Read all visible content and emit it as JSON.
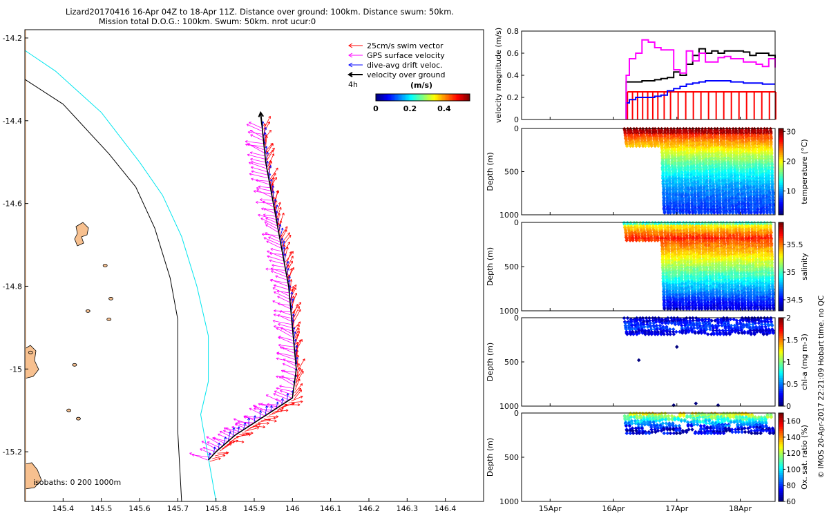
{
  "header": {
    "line1": "Lizard20170416 16-Apr 04Z to 18-Apr 11Z. Distance over ground: 100km. Distance swum: 50km.",
    "line2": "Mission total D.O.G.: 100km. Swum: 50km. nrot ucur:0"
  },
  "colors": {
    "swim": "#ff0000",
    "gps": "#ff00ff",
    "drift": "#0000ff",
    "vog": "#000000",
    "isobath_0": "#000000",
    "isobath_200": "#00e5ee",
    "isobath_1000": "#000000",
    "land": "#f7c08f"
  },
  "chart_data": [
    {
      "id": "map",
      "type": "scatter",
      "title": "Glider track map",
      "xlim": [
        145.3,
        146.5
      ],
      "ylim": [
        -15.32,
        -14.18
      ],
      "xticks": [
        "145.4",
        "145.5",
        "145.6",
        "145.7",
        "145.8",
        "145.9",
        "146",
        "146.1",
        "146.2",
        "146.3",
        "146.4"
      ],
      "xtick_values": [
        145.4,
        145.5,
        145.6,
        145.7,
        145.8,
        145.9,
        146.0,
        146.1,
        146.2,
        146.3,
        146.4
      ],
      "yticks": [
        "-14.2",
        "-14.4",
        "-14.6",
        "-14.8",
        "-15",
        "-15.2"
      ],
      "ytick_values": [
        -14.2,
        -14.4,
        -14.6,
        -14.8,
        -15.0,
        -15.2
      ],
      "legend": [
        {
          "label": "25cm/s swim vector",
          "color": "#ff0000"
        },
        {
          "label": "GPS surface velocity",
          "color": "#ff00ff"
        },
        {
          "label": "dive-avg drift veloc.",
          "color": "#0000ff"
        },
        {
          "label": "velocity over ground",
          "color": "#000000"
        }
      ],
      "legend_note": "4h",
      "colorbar": {
        "title": "(m/s)",
        "ticks": [
          "0",
          "0.2",
          "0.4"
        ],
        "range": [
          0,
          0.55
        ]
      },
      "isobath_label": "isobaths: 0   200  1000m",
      "track": [
        [
          145.78,
          -15.22
        ],
        [
          145.8,
          -15.2
        ],
        [
          145.85,
          -15.16
        ],
        [
          145.9,
          -15.13
        ],
        [
          145.95,
          -15.1
        ],
        [
          146.0,
          -15.07
        ],
        [
          146.01,
          -15.0
        ],
        [
          146.0,
          -14.9
        ],
        [
          145.99,
          -14.8
        ],
        [
          145.97,
          -14.7
        ],
        [
          145.95,
          -14.6
        ],
        [
          145.93,
          -14.5
        ],
        [
          145.92,
          -14.41
        ]
      ],
      "isobath_200": [
        [
          145.3,
          -14.23
        ],
        [
          145.38,
          -14.28
        ],
        [
          145.5,
          -14.38
        ],
        [
          145.6,
          -14.5
        ],
        [
          145.66,
          -14.58
        ],
        [
          145.71,
          -14.68
        ],
        [
          145.75,
          -14.8
        ],
        [
          145.78,
          -14.92
        ],
        [
          145.78,
          -15.03
        ],
        [
          145.76,
          -15.11
        ],
        [
          145.8,
          -15.32
        ]
      ],
      "isobath_1000": [
        [
          145.3,
          -14.3
        ],
        [
          145.4,
          -14.36
        ],
        [
          145.52,
          -14.48
        ],
        [
          145.59,
          -14.56
        ],
        [
          145.64,
          -14.66
        ],
        [
          145.68,
          -14.78
        ],
        [
          145.7,
          -14.88
        ],
        [
          145.7,
          -15.0
        ],
        [
          145.7,
          -15.15
        ],
        [
          145.71,
          -15.32
        ]
      ],
      "islands": [
        [
          145.45,
          -14.67
        ],
        [
          145.51,
          -14.75
        ],
        [
          145.52,
          -14.83
        ],
        [
          145.4,
          -15.0
        ],
        [
          145.42,
          -15.1
        ],
        [
          145.32,
          -15.0
        ],
        [
          145.32,
          -15.25
        ]
      ]
    },
    {
      "id": "speed",
      "type": "line",
      "ylabel": "velocity magnitude (m/s)",
      "ylim": [
        0,
        0.8
      ],
      "yticks": [
        "0",
        "0.2",
        "0.4",
        "0.6",
        "0.8"
      ],
      "series": [
        {
          "name": "GPS surface velocity",
          "color": "#ff00ff",
          "x": [
            16.2,
            16.25,
            16.35,
            16.45,
            16.55,
            16.65,
            16.75,
            16.85,
            16.95,
            17.05,
            17.15,
            17.25,
            17.35,
            17.45,
            17.55,
            17.65,
            17.75,
            17.85,
            17.95,
            18.05,
            18.15,
            18.25,
            18.35,
            18.45,
            18.55
          ],
          "values": [
            0.4,
            0.55,
            0.6,
            0.72,
            0.7,
            0.65,
            0.63,
            0.63,
            0.45,
            0.42,
            0.62,
            0.53,
            0.6,
            0.52,
            0.52,
            0.56,
            0.57,
            0.55,
            0.55,
            0.52,
            0.52,
            0.5,
            0.48,
            0.55,
            0.47
          ]
        },
        {
          "name": "velocity over ground",
          "color": "#000000",
          "x": [
            16.2,
            16.25,
            16.35,
            16.45,
            16.55,
            16.65,
            16.75,
            16.85,
            16.95,
            17.05,
            17.15,
            17.25,
            17.35,
            17.45,
            17.55,
            17.65,
            17.75,
            17.85,
            17.95,
            18.05,
            18.15,
            18.25,
            18.35,
            18.45,
            18.55
          ],
          "values": [
            0.34,
            0.34,
            0.34,
            0.35,
            0.35,
            0.36,
            0.37,
            0.38,
            0.43,
            0.4,
            0.5,
            0.58,
            0.64,
            0.6,
            0.62,
            0.6,
            0.62,
            0.62,
            0.62,
            0.61,
            0.58,
            0.6,
            0.6,
            0.58,
            0.55
          ]
        },
        {
          "name": "dive-avg drift veloc.",
          "color": "#0000ff",
          "x": [
            16.2,
            16.25,
            16.35,
            16.45,
            16.55,
            16.65,
            16.75,
            16.85,
            16.95,
            17.05,
            17.15,
            17.25,
            17.35,
            17.45,
            17.55,
            17.65,
            17.75,
            17.85,
            17.95,
            18.05,
            18.15,
            18.25,
            18.35,
            18.45,
            18.55
          ],
          "values": [
            0.15,
            0.18,
            0.2,
            0.2,
            0.2,
            0.21,
            0.22,
            0.26,
            0.28,
            0.3,
            0.32,
            0.33,
            0.34,
            0.35,
            0.35,
            0.35,
            0.35,
            0.34,
            0.34,
            0.33,
            0.33,
            0.33,
            0.32,
            0.32,
            0.32
          ]
        },
        {
          "name": "25cm/s swim vector",
          "color": "#ff0000",
          "type": "stems",
          "value": 0.25,
          "x": [
            16.22,
            16.3,
            16.38,
            16.46,
            16.54,
            16.62,
            16.7,
            16.8,
            16.9,
            17.02,
            17.14,
            17.26,
            17.38,
            17.5,
            17.62,
            17.74,
            17.86,
            17.98,
            18.1,
            18.22,
            18.34,
            18.46,
            18.56
          ]
        }
      ]
    },
    {
      "id": "temperature",
      "type": "scatter",
      "ylabel": "Depth (m)",
      "cbar_label": "temperature (°C)",
      "cbar_ticks": [
        "10",
        "20",
        "30"
      ],
      "cbar_range": [
        2,
        31
      ],
      "yticks": [
        "0",
        "500",
        "1000"
      ],
      "ylim": [
        1000,
        0
      ],
      "var": "temp"
    },
    {
      "id": "salinity",
      "type": "scatter",
      "ylabel": "Depth (m)",
      "cbar_label": "salinity",
      "cbar_ticks": [
        "34.5",
        "35",
        "35.5"
      ],
      "cbar_range": [
        34.3,
        35.9
      ],
      "yticks": [
        "0",
        "500",
        "1000"
      ],
      "ylim": [
        1000,
        0
      ],
      "var": "sal"
    },
    {
      "id": "chla",
      "type": "scatter",
      "ylabel": "Depth (m)",
      "cbar_label": "chl-a (mg m-3)",
      "cbar_ticks": [
        "0",
        "0.5",
        "1",
        "1.5",
        "2"
      ],
      "cbar_range": [
        0,
        2
      ],
      "yticks": [
        "0",
        "500",
        "1000"
      ],
      "ylim": [
        1000,
        0
      ],
      "var": "chl",
      "outliers": [
        [
          16.4,
          480
        ],
        [
          17.0,
          330
        ],
        [
          16.95,
          990
        ],
        [
          17.3,
          970
        ],
        [
          17.65,
          990
        ]
      ]
    },
    {
      "id": "oxsat",
      "type": "scatter",
      "ylabel": "Depth (m)",
      "cbar_label": "Ox. sat. ratio (%)",
      "cbar_ticks": [
        "60",
        "80",
        "100",
        "120",
        "140",
        "160"
      ],
      "cbar_range": [
        60,
        170
      ],
      "yticks": [
        "0",
        "500",
        "1000"
      ],
      "ylim": [
        1000,
        0
      ],
      "var": "ox"
    }
  ],
  "time_axis": {
    "xlim": [
      14.55,
      18.55
    ],
    "ticks": [
      "15Apr",
      "16Apr",
      "17Apr",
      "18Apr"
    ],
    "tick_values": [
      15,
      16,
      17,
      18
    ],
    "deep_start": 16.7,
    "start": 16.17,
    "end": 18.5
  },
  "copyright": "© IMOS 20-Apr-2017 22:21:09 Hobart time. no QC"
}
